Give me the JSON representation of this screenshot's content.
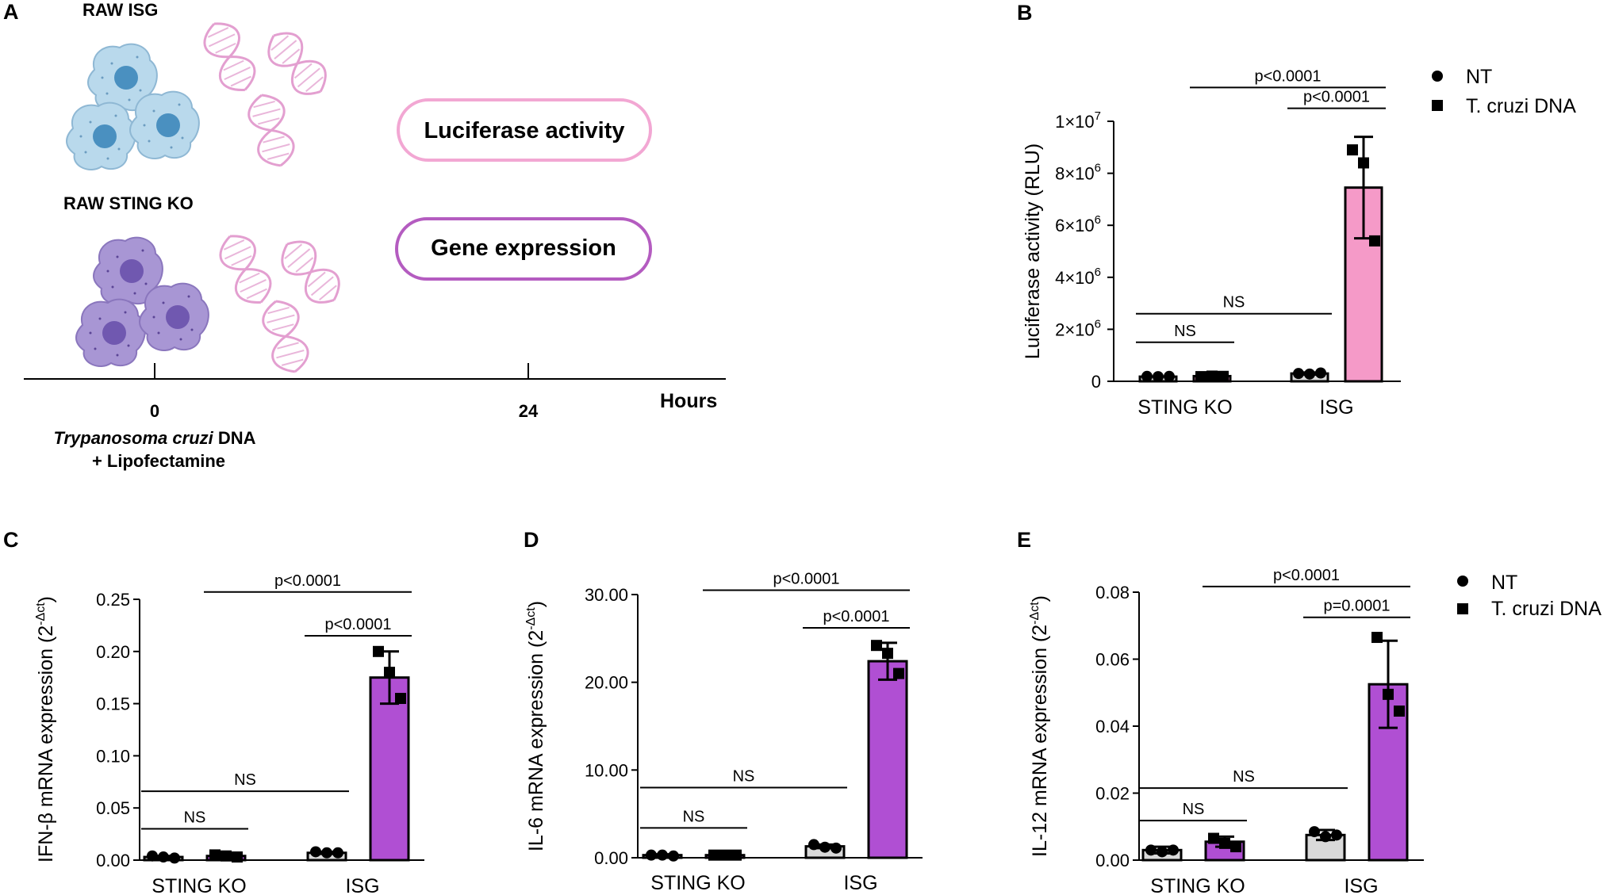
{
  "panel_a": {
    "letter": "A",
    "group1_label": "RAW ISG",
    "group2_label": "RAW STING KO",
    "readout1": "Luciferase activity",
    "readout2": "Gene expression",
    "timeline": {
      "tick0": "0",
      "tick24": "24",
      "unit": "Hours",
      "treatment_italic": "Trypanosoma cruzi",
      "treatment_rest": " DNA",
      "treatment_line2": "+ Lipofectamine"
    },
    "colors": {
      "isg_cell": "#b9d9ec",
      "isg_nucleus": "#4a90c0",
      "ko_cell": "#a896d4",
      "ko_nucleus": "#7058b0",
      "dna": "#e39fd0",
      "box1": "#f2a7d3",
      "box2": "#b45cc0"
    }
  },
  "legend": {
    "nt": "NT",
    "tc": "T. cruzi DNA"
  },
  "chart_data": [
    {
      "letter": "B",
      "type": "bar",
      "ylabel": "Luciferase activity (RLU)",
      "categories": [
        "STING KO",
        "ISG"
      ],
      "ylim": [
        0,
        10000000
      ],
      "yticks": [
        0,
        2000000,
        4000000,
        6000000,
        8000000,
        10000000
      ],
      "yticklabels": [
        {
          "base": "0",
          "exp": ""
        },
        {
          "base": "2×10",
          "exp": "6"
        },
        {
          "base": "4×10",
          "exp": "6"
        },
        {
          "base": "6×10",
          "exp": "6"
        },
        {
          "base": "8×10",
          "exp": "6"
        },
        {
          "base": "1×10",
          "exp": "7"
        }
      ],
      "tc_color": "#f59ac8",
      "nt_color": "#d9d9d9",
      "series": [
        {
          "name": "NT",
          "values": [
            180000,
            300000
          ],
          "err": [
            0,
            40000
          ],
          "points": [
            [
              190000,
              180000,
              190000
            ],
            [
              300000,
              280000,
              320000
            ]
          ]
        },
        {
          "name": "T. cruzi DNA",
          "values": [
            200000,
            7450000
          ],
          "err": [
            0,
            1950000
          ],
          "points": [
            [
              180000,
              200000,
              190000
            ],
            [
              8900000,
              8400000,
              5400000
            ]
          ]
        }
      ],
      "sig": [
        {
          "label": "NS",
          "from": "g0s0",
          "to": "g0s1",
          "level": 1500000
        },
        {
          "label": "NS",
          "from": "g0s0",
          "to": "g1s0",
          "level": 2600000
        },
        {
          "label": "p<0.0001",
          "from": "g1s0",
          "to": "g1s1",
          "level": 10500000
        },
        {
          "label": "p<0.0001",
          "from": "g0s1",
          "to": "g1s1",
          "level": 11300000
        }
      ]
    },
    {
      "letter": "C",
      "type": "bar",
      "ylabel": "IFN-β mRNA expression (2",
      "ylabel_sup": "-Δct",
      "ylabel_end": ")",
      "categories": [
        "STING KO",
        "ISG"
      ],
      "ylim": [
        0,
        0.25
      ],
      "yticks": [
        0,
        0.05,
        0.1,
        0.15,
        0.2,
        0.25
      ],
      "yticklabels": [
        {
          "base": "0.00",
          "exp": ""
        },
        {
          "base": "0.05",
          "exp": ""
        },
        {
          "base": "0.10",
          "exp": ""
        },
        {
          "base": "0.15",
          "exp": ""
        },
        {
          "base": "0.20",
          "exp": ""
        },
        {
          "base": "0.25",
          "exp": ""
        }
      ],
      "tc_color": "#b04fd3",
      "nt_color": "#d9d9d9",
      "series": [
        {
          "name": "NT",
          "values": [
            0.003,
            0.007
          ],
          "err": [
            0.001,
            0.001
          ],
          "points": [
            [
              0.004,
              0.003,
              0.002
            ],
            [
              0.008,
              0.007,
              0.007
            ]
          ]
        },
        {
          "name": "T. cruzi DNA",
          "values": [
            0.004,
            0.175
          ],
          "err": [
            0.002,
            0.025
          ],
          "points": [
            [
              0.005,
              0.004,
              0.003
            ],
            [
              0.2,
              0.18,
              0.155
            ]
          ]
        }
      ],
      "sig": [
        {
          "label": "NS",
          "from": "g0s0",
          "to": "g0s1",
          "level": 0.03
        },
        {
          "label": "NS",
          "from": "g0s0",
          "to": "g1s0",
          "level": 0.066
        },
        {
          "label": "p<0.0001",
          "from": "g1s0",
          "to": "g1s1",
          "level": 0.215
        },
        {
          "label": "p<0.0001",
          "from": "g0s1",
          "to": "g1s1",
          "level": 0.257
        }
      ]
    },
    {
      "letter": "D",
      "type": "bar",
      "ylabel": "IL-6 mRNA expression (2",
      "ylabel_sup": "-Δct",
      "ylabel_end": ")",
      "categories": [
        "STING KO",
        "ISG"
      ],
      "ylim": [
        0,
        30
      ],
      "yticks": [
        0,
        10,
        20,
        30
      ],
      "yticklabels": [
        {
          "base": "0.00",
          "exp": ""
        },
        {
          "base": "10.00",
          "exp": ""
        },
        {
          "base": "20.00",
          "exp": ""
        },
        {
          "base": "30.00",
          "exp": ""
        }
      ],
      "tc_color": "#b04fd3",
      "nt_color": "#d9d9d9",
      "series": [
        {
          "name": "NT",
          "values": [
            0.3,
            1.3
          ],
          "err": [
            0.1,
            0.2
          ],
          "points": [
            [
              0.3,
              0.3,
              0.2
            ],
            [
              1.5,
              1.2,
              1.1
            ]
          ]
        },
        {
          "name": "T. cruzi DNA",
          "values": [
            0.3,
            22.4
          ],
          "err": [
            0.1,
            2.1
          ],
          "points": [
            [
              0.3,
              0.3,
              0.3
            ],
            [
              24.2,
              23.3,
              21.0
            ]
          ]
        }
      ],
      "sig": [
        {
          "label": "NS",
          "from": "g0s0",
          "to": "g0s1",
          "level": 3.4
        },
        {
          "label": "NS",
          "from": "g0s0",
          "to": "g1s0",
          "level": 8.0
        },
        {
          "label": "p<0.0001",
          "from": "g1s0",
          "to": "g1s1",
          "level": 26.2
        },
        {
          "label": "p<0.0001",
          "from": "g0s1",
          "to": "g1s1",
          "level": 30.5
        }
      ]
    },
    {
      "letter": "E",
      "type": "bar",
      "ylabel": "IL-12 mRNA expression (2",
      "ylabel_sup": "-Δct",
      "ylabel_end": ")",
      "categories": [
        "STING KO",
        "ISG"
      ],
      "ylim": [
        0,
        0.08
      ],
      "yticks": [
        0,
        0.02,
        0.04,
        0.06,
        0.08
      ],
      "yticklabels": [
        {
          "base": "0.00",
          "exp": ""
        },
        {
          "base": "0.02",
          "exp": ""
        },
        {
          "base": "0.04",
          "exp": ""
        },
        {
          "base": "0.06",
          "exp": ""
        },
        {
          "base": "0.08",
          "exp": ""
        }
      ],
      "tc_color": "#b04fd3",
      "nt_color": "#d9d9d9",
      "series": [
        {
          "name": "NT",
          "values": [
            0.003,
            0.0075
          ],
          "err": [
            0.001,
            0.0015
          ],
          "points": [
            [
              0.003,
              0.0025,
              0.003
            ],
            [
              0.0085,
              0.007,
              0.0075
            ]
          ]
        },
        {
          "name": "T. cruzi DNA",
          "values": [
            0.0055,
            0.0525
          ],
          "err": [
            0.0015,
            0.013
          ],
          "points": [
            [
              0.0065,
              0.005,
              0.004
            ],
            [
              0.0665,
              0.0495,
              0.0445
            ]
          ]
        }
      ],
      "sig": [
        {
          "label": "NS",
          "from": "g0s0",
          "to": "g0s1",
          "level": 0.0118
        },
        {
          "label": "NS",
          "from": "g0s0",
          "to": "g1s0",
          "level": 0.0215
        },
        {
          "label": "p=0.0001",
          "from": "g1s0",
          "to": "g1s1",
          "level": 0.0725
        },
        {
          "label": "p<0.0001",
          "from": "g0s1",
          "to": "g1s1",
          "level": 0.0817
        }
      ]
    }
  ]
}
